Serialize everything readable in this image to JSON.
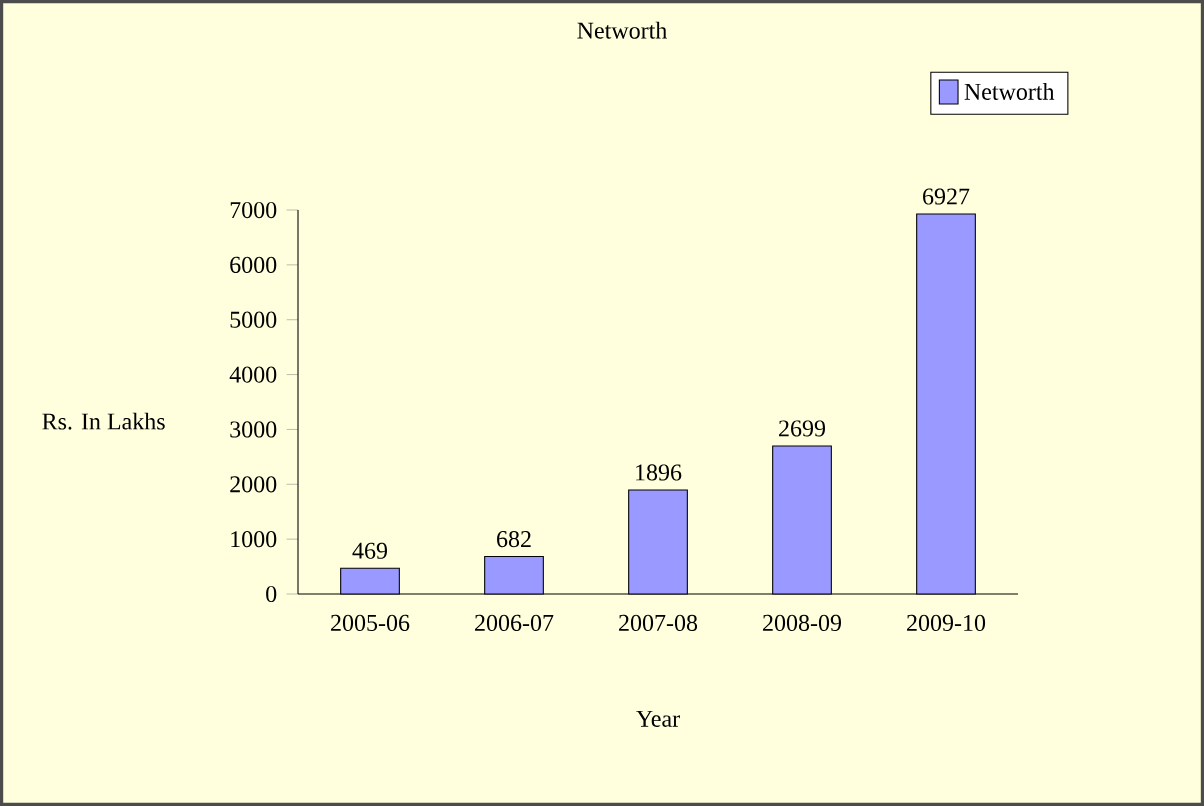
{
  "chart_data": {
    "type": "bar",
    "title": "Networth",
    "xlabel": "Year",
    "ylabel": "Rs. In Lakhs",
    "categories": [
      "2005-06",
      "2006-07",
      "2007-08",
      "2008-09",
      "2009-10"
    ],
    "series": [
      {
        "name": "Networth",
        "color": "#9999ff",
        "values": [
          469,
          682,
          1896,
          2699,
          6927
        ]
      }
    ],
    "ylim": [
      0,
      7000
    ],
    "yticks": [
      0,
      1000,
      2000,
      3000,
      4000,
      5000,
      6000,
      7000
    ],
    "data_labels": true,
    "legend": "top right",
    "grid": false
  }
}
